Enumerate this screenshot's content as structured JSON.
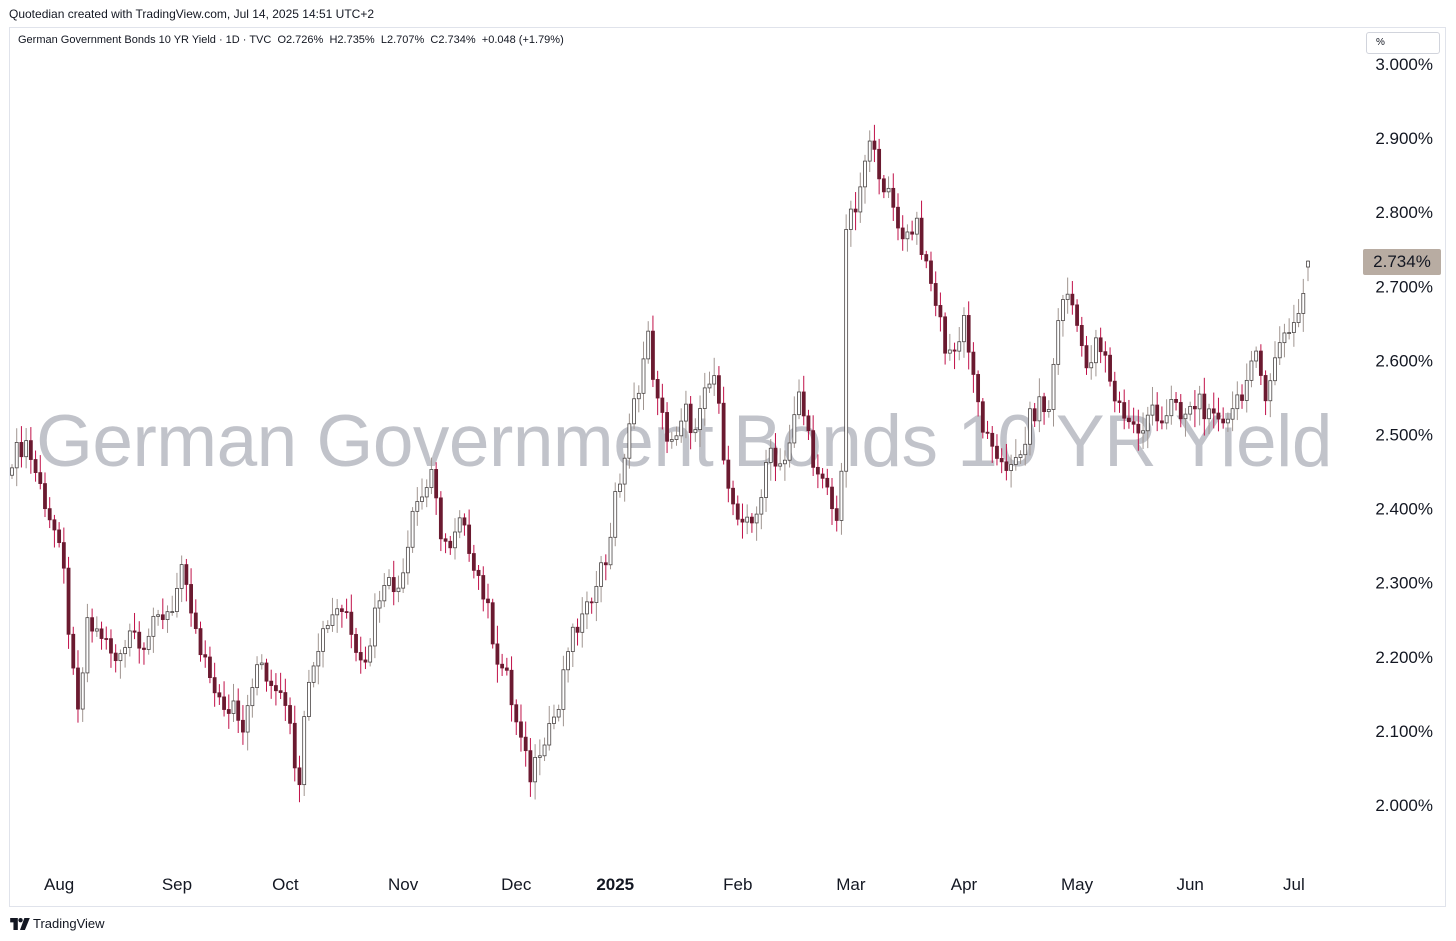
{
  "header": {
    "credit": "Quotedian created with TradingView.com, Jul 14, 2025 14:51 UTC+2"
  },
  "legend": {
    "symbol": "German Government Bonds 10 YR Yield · 1D · TVC",
    "open": "O2.726%",
    "high": "H2.735%",
    "low": "L2.707%",
    "close": "C2.734%",
    "change": "+0.048 (+1.79%)"
  },
  "unit_selector": "%",
  "watermark": "German Government Bonds 10 YR Yield",
  "last_price_label": "2.734%",
  "footer": {
    "brand": "TradingView",
    "logo_icon": "tradingview-logo-icon"
  },
  "colors": {
    "up": "#4a4545",
    "down": "#6b1a30",
    "wick_up": "#a09590",
    "wick_down": "#c01048",
    "price_tag": "#b8aca2"
  },
  "chart_data": {
    "type": "candlestick",
    "title": "German Government Bonds 10 YR Yield",
    "interval": "1D",
    "ylim": [
      1.92,
      3.03
    ],
    "y_ticks": [
      "3.000%",
      "2.900%",
      "2.800%",
      "2.700%",
      "2.600%",
      "2.500%",
      "2.400%",
      "2.300%",
      "2.200%",
      "2.100%",
      "2.000%"
    ],
    "x_ticks": [
      {
        "label": "Aug",
        "year": false
      },
      {
        "label": "Sep",
        "year": false
      },
      {
        "label": "Oct",
        "year": false
      },
      {
        "label": "Nov",
        "year": false
      },
      {
        "label": "Dec",
        "year": false
      },
      {
        "label": "2025",
        "year": true
      },
      {
        "label": "Feb",
        "year": false
      },
      {
        "label": "Mar",
        "year": false
      },
      {
        "label": "Apr",
        "year": false
      },
      {
        "label": "May",
        "year": false
      },
      {
        "label": "Jun",
        "year": false
      },
      {
        "label": "Jul",
        "year": false
      }
    ],
    "x_tick_bar_index": [
      10,
      35,
      58,
      83,
      107,
      128,
      154,
      178,
      202,
      226,
      250,
      272
    ],
    "close_path": [
      [
        0,
        2.47
      ],
      [
        3,
        2.49
      ],
      [
        6,
        2.43
      ],
      [
        9,
        2.37
      ],
      [
        11,
        2.31
      ],
      [
        13,
        2.17
      ],
      [
        14,
        2.12
      ],
      [
        16,
        2.24
      ],
      [
        19,
        2.23
      ],
      [
        22,
        2.19
      ],
      [
        25,
        2.24
      ],
      [
        28,
        2.22
      ],
      [
        31,
        2.25
      ],
      [
        34,
        2.27
      ],
      [
        36,
        2.31
      ],
      [
        38,
        2.26
      ],
      [
        40,
        2.2
      ],
      [
        43,
        2.16
      ],
      [
        45,
        2.12
      ],
      [
        47,
        2.14
      ],
      [
        49,
        2.11
      ],
      [
        51,
        2.17
      ],
      [
        53,
        2.19
      ],
      [
        55,
        2.15
      ],
      [
        57,
        2.16
      ],
      [
        59,
        2.12
      ],
      [
        60,
        2.06
      ],
      [
        61,
        2.04
      ],
      [
        63,
        2.18
      ],
      [
        65,
        2.22
      ],
      [
        67,
        2.25
      ],
      [
        69,
        2.27
      ],
      [
        71,
        2.26
      ],
      [
        73,
        2.22
      ],
      [
        75,
        2.19
      ],
      [
        77,
        2.26
      ],
      [
        79,
        2.31
      ],
      [
        81,
        2.29
      ],
      [
        83,
        2.32
      ],
      [
        85,
        2.4
      ],
      [
        87,
        2.42
      ],
      [
        89,
        2.44
      ],
      [
        91,
        2.37
      ],
      [
        93,
        2.34
      ],
      [
        95,
        2.38
      ],
      [
        97,
        2.35
      ],
      [
        99,
        2.31
      ],
      [
        101,
        2.26
      ],
      [
        103,
        2.2
      ],
      [
        105,
        2.17
      ],
      [
        107,
        2.11
      ],
      [
        109,
        2.06
      ],
      [
        110,
        2.04
      ],
      [
        112,
        2.08
      ],
      [
        114,
        2.11
      ],
      [
        116,
        2.13
      ],
      [
        118,
        2.21
      ],
      [
        120,
        2.24
      ],
      [
        122,
        2.26
      ],
      [
        124,
        2.31
      ],
      [
        126,
        2.33
      ],
      [
        128,
        2.41
      ],
      [
        130,
        2.47
      ],
      [
        132,
        2.54
      ],
      [
        134,
        2.6
      ],
      [
        135,
        2.63
      ],
      [
        137,
        2.54
      ],
      [
        139,
        2.5
      ],
      [
        141,
        2.49
      ],
      [
        143,
        2.53
      ],
      [
        145,
        2.5
      ],
      [
        147,
        2.55
      ],
      [
        149,
        2.58
      ],
      [
        151,
        2.48
      ],
      [
        153,
        2.4
      ],
      [
        155,
        2.37
      ],
      [
        157,
        2.38
      ],
      [
        159,
        2.42
      ],
      [
        161,
        2.48
      ],
      [
        163,
        2.46
      ],
      [
        165,
        2.49
      ],
      [
        167,
        2.55
      ],
      [
        169,
        2.5
      ],
      [
        171,
        2.44
      ],
      [
        173,
        2.42
      ],
      [
        175,
        2.38
      ],
      [
        176,
        2.46
      ],
      [
        177,
        2.78
      ],
      [
        178,
        2.79
      ],
      [
        180,
        2.82
      ],
      [
        181,
        2.87
      ],
      [
        182,
        2.89
      ],
      [
        184,
        2.86
      ],
      [
        186,
        2.82
      ],
      [
        188,
        2.78
      ],
      [
        190,
        2.77
      ],
      [
        192,
        2.79
      ],
      [
        194,
        2.72
      ],
      [
        196,
        2.68
      ],
      [
        198,
        2.62
      ],
      [
        200,
        2.61
      ],
      [
        202,
        2.66
      ],
      [
        204,
        2.57
      ],
      [
        206,
        2.51
      ],
      [
        208,
        2.47
      ],
      [
        210,
        2.47
      ],
      [
        212,
        2.45
      ],
      [
        214,
        2.47
      ],
      [
        216,
        2.52
      ],
      [
        218,
        2.54
      ],
      [
        220,
        2.53
      ],
      [
        222,
        2.66
      ],
      [
        224,
        2.69
      ],
      [
        226,
        2.66
      ],
      [
        228,
        2.58
      ],
      [
        230,
        2.62
      ],
      [
        232,
        2.6
      ],
      [
        234,
        2.55
      ],
      [
        236,
        2.53
      ],
      [
        238,
        2.51
      ],
      [
        240,
        2.5
      ],
      [
        242,
        2.54
      ],
      [
        244,
        2.52
      ],
      [
        246,
        2.54
      ],
      [
        248,
        2.52
      ],
      [
        250,
        2.53
      ],
      [
        252,
        2.55
      ],
      [
        254,
        2.52
      ],
      [
        256,
        2.51
      ],
      [
        258,
        2.53
      ],
      [
        260,
        2.55
      ],
      [
        262,
        2.57
      ],
      [
        264,
        2.6
      ],
      [
        266,
        2.56
      ],
      [
        268,
        2.6
      ],
      [
        270,
        2.64
      ],
      [
        272,
        2.65
      ],
      [
        274,
        2.69
      ],
      [
        275,
        2.734
      ]
    ],
    "last_bar": {
      "open": 2.726,
      "high": 2.735,
      "low": 2.707,
      "close": 2.734
    },
    "x_bar_positions": {
      "first_bar_index": 0,
      "last_bar_index": 275
    }
  }
}
